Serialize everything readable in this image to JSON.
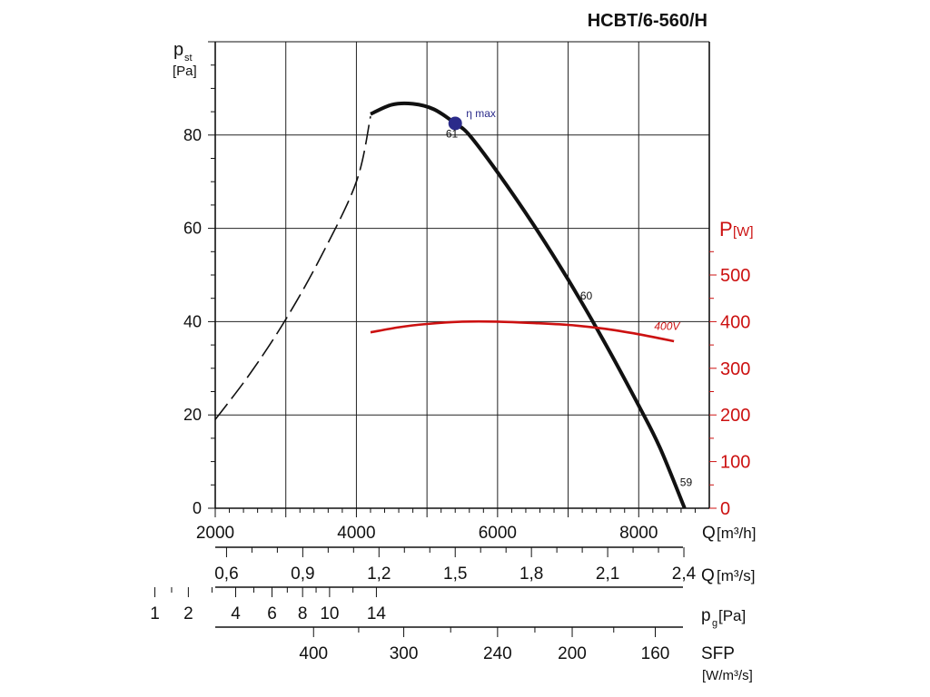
{
  "chart_data": {
    "type": "line",
    "title": "HCBT/6-560/H",
    "colors": {
      "pressure": "#111111",
      "power": "#cc1111",
      "eta_marker": "#2b2b8a"
    },
    "x_axis": {
      "label": "Q",
      "unit": "[m³/h]",
      "range": [
        2000,
        9000
      ],
      "ticks": [
        2000,
        4000,
        6000,
        8000
      ],
      "tick_labels": [
        "2000",
        "4000",
        "6000",
        "8000"
      ]
    },
    "y_axis": {
      "label": "p",
      "label_sub": "st",
      "unit": "[Pa]",
      "range": [
        0,
        100
      ],
      "ticks": [
        0,
        20,
        40,
        60,
        80
      ],
      "tick_labels": [
        "0",
        "20",
        "40",
        "60",
        "80"
      ]
    },
    "y2_axis": {
      "label": "P",
      "unit": "[W]",
      "range": [
        0,
        1000
      ],
      "ticks": [
        0,
        100,
        200,
        300,
        400,
        500
      ],
      "tick_labels": [
        "0",
        "100",
        "200",
        "300",
        "400",
        "500"
      ]
    },
    "grid": true,
    "series": [
      {
        "name": "",
        "axis": "y",
        "unstable_part": [
          [
            2000,
            19
          ],
          [
            2500,
            29
          ],
          [
            3000,
            40.5
          ],
          [
            3500,
            54
          ],
          [
            4000,
            70
          ],
          [
            4200,
            84
          ]
        ],
        "values": [
          [
            4200,
            84.5
          ],
          [
            4500,
            86.5
          ],
          [
            4800,
            86.7
          ],
          [
            5100,
            85.5
          ],
          [
            5400,
            82.5
          ],
          [
            5600,
            80
          ],
          [
            6000,
            72
          ],
          [
            6500,
            61
          ],
          [
            7000,
            49
          ],
          [
            7500,
            36
          ],
          [
            8000,
            22
          ],
          [
            8300,
            13
          ],
          [
            8650,
            0
          ]
        ]
      },
      {
        "name": "400V",
        "axis": "y2",
        "values": [
          [
            4200,
            377
          ],
          [
            4600,
            388
          ],
          [
            5000,
            395
          ],
          [
            5500,
            400
          ],
          [
            6000,
            400
          ],
          [
            6500,
            397
          ],
          [
            7000,
            393
          ],
          [
            7500,
            385
          ],
          [
            8000,
            373
          ],
          [
            8500,
            358
          ]
        ]
      }
    ],
    "annotations": [
      {
        "text": "η max",
        "x": 5400,
        "y": 82.5
      },
      {
        "text": "61",
        "x": 5550,
        "y": 79.5
      },
      {
        "text": "60",
        "x": 7300,
        "y": 43
      },
      {
        "text": "59",
        "x": 8650,
        "y": 5.5
      }
    ],
    "secondary_scales": [
      {
        "label": "Q",
        "unit": "[m³/s]",
        "ticks": [
          0.6,
          0.9,
          1.2,
          1.5,
          1.8,
          2.1,
          2.4
        ],
        "tick_labels": [
          "0,6",
          "0,9",
          "1,2",
          "1,5",
          "1,8",
          "2,1",
          "2,4"
        ]
      },
      {
        "label": "p",
        "label_sub": "g",
        "unit": "[Pa]",
        "ticks": [
          1,
          2,
          4,
          6,
          8,
          10,
          14
        ],
        "tick_labels": [
          "1",
          "2",
          "4",
          "6",
          "8",
          "10",
          "14"
        ]
      },
      {
        "label": "SFP",
        "unit": "[W/m³/s]",
        "ticks": [
          400,
          300,
          240,
          200,
          160
        ],
        "tick_labels": [
          "400",
          "300",
          "240",
          "200",
          "160"
        ]
      }
    ]
  }
}
